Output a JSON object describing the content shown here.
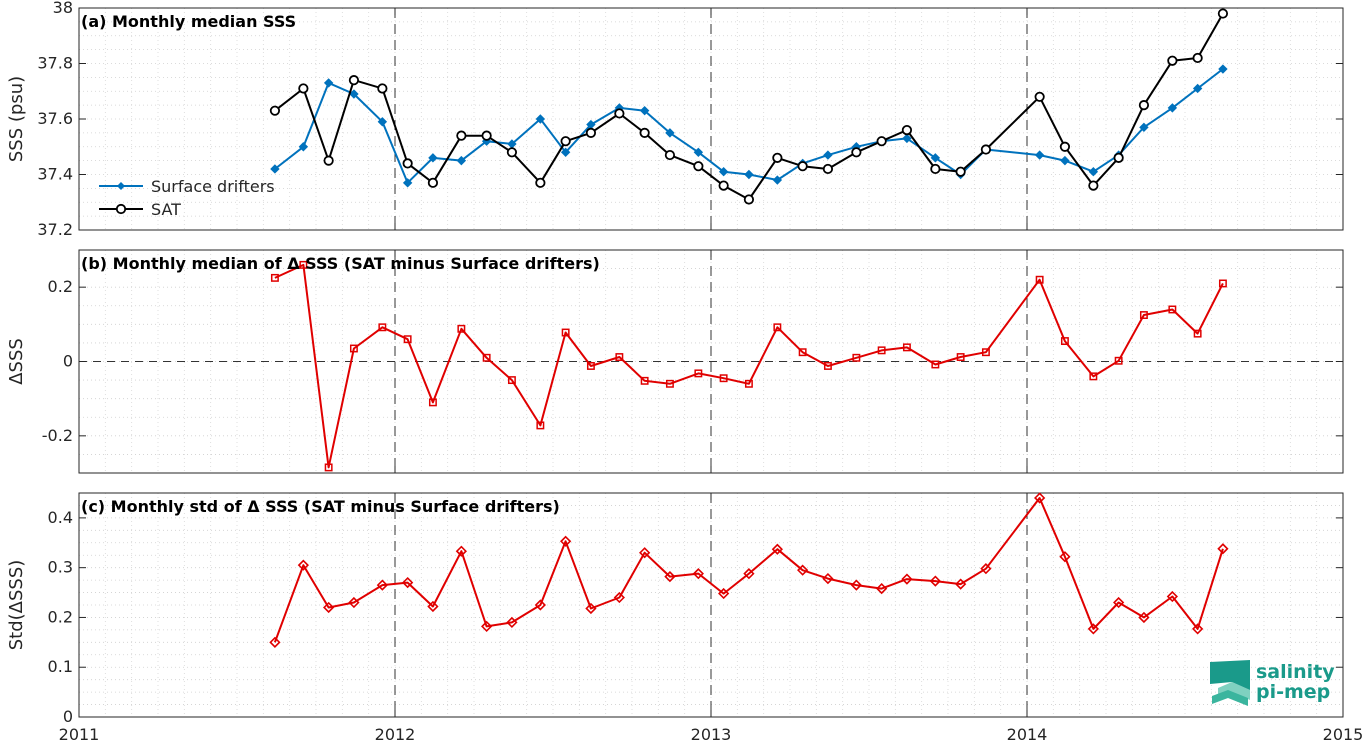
{
  "chart_data": [
    {
      "type": "line",
      "title": "(a) Monthly median SSS",
      "ylabel": "SSS (psu)",
      "ylim": [
        37.2,
        38
      ],
      "yticks": [
        "37.2",
        "37.4",
        "37.6",
        "37.8",
        "38"
      ],
      "legend_placement": "middle-left",
      "grid": true,
      "series": [
        {
          "name": "Surface drifters",
          "color": "#0072bd",
          "marker": "diamond-filled",
          "x": [
            2011.62,
            2011.71,
            2011.79,
            2011.87,
            2011.96,
            2012.04,
            2012.12,
            2012.21,
            2012.29,
            2012.37,
            2012.46,
            2012.54,
            2012.62,
            2012.71,
            2012.79,
            2012.87,
            2012.96,
            2013.04,
            2013.12,
            2013.21,
            2013.29,
            2013.37,
            2013.46,
            2013.54,
            2013.62,
            2013.71,
            2013.79,
            2013.87,
            2014.04,
            2014.12,
            2014.21,
            2014.29,
            2014.37,
            2014.46,
            2014.54,
            2014.62
          ],
          "y": [
            37.42,
            37.5,
            37.73,
            37.69,
            37.59,
            37.37,
            37.46,
            37.45,
            37.52,
            37.51,
            37.6,
            37.48,
            37.58,
            37.64,
            37.63,
            37.55,
            37.48,
            37.41,
            37.4,
            37.38,
            37.44,
            37.47,
            37.5,
            37.52,
            37.53,
            37.46,
            37.4,
            37.49,
            37.47,
            37.45,
            37.41,
            37.47,
            37.57,
            37.64,
            37.71,
            37.78
          ]
        },
        {
          "name": "SAT",
          "color": "#000000",
          "marker": "circle-open",
          "x": [
            2011.62,
            2011.71,
            2011.79,
            2011.87,
            2011.96,
            2012.04,
            2012.12,
            2012.21,
            2012.29,
            2012.37,
            2012.46,
            2012.54,
            2012.62,
            2012.71,
            2012.79,
            2012.87,
            2012.96,
            2013.04,
            2013.12,
            2013.21,
            2013.29,
            2013.37,
            2013.46,
            2013.54,
            2013.62,
            2013.71,
            2013.79,
            2013.87,
            2014.04,
            2014.12,
            2014.21,
            2014.29,
            2014.37,
            2014.46,
            2014.54,
            2014.62
          ],
          "y": [
            37.63,
            37.71,
            37.45,
            37.74,
            37.71,
            37.44,
            37.37,
            37.54,
            37.54,
            37.48,
            37.37,
            37.52,
            37.55,
            37.62,
            37.55,
            37.47,
            37.43,
            37.36,
            37.31,
            37.46,
            37.43,
            37.42,
            37.48,
            37.52,
            37.56,
            37.42,
            37.41,
            37.49,
            37.68,
            37.5,
            37.36,
            37.46,
            37.65,
            37.81,
            37.82,
            37.98
          ]
        }
      ]
    },
    {
      "type": "line",
      "title": "(b) Monthly median of Δ SSS (SAT minus Surface drifters)",
      "ylabel": "ΔSSS",
      "ylim": [
        -0.3,
        0.3
      ],
      "yticks": [
        "-0.2",
        "0",
        "0.2"
      ],
      "zero_line": true,
      "grid": true,
      "series": [
        {
          "color": "#e00000",
          "marker": "square-open",
          "x": [
            2011.62,
            2011.71,
            2011.79,
            2011.87,
            2011.96,
            2012.04,
            2012.12,
            2012.21,
            2012.29,
            2012.37,
            2012.46,
            2012.54,
            2012.62,
            2012.71,
            2012.79,
            2012.87,
            2012.96,
            2013.04,
            2013.12,
            2013.21,
            2013.29,
            2013.37,
            2013.46,
            2013.54,
            2013.62,
            2013.71,
            2013.79,
            2013.87,
            2014.04,
            2014.12,
            2014.21,
            2014.29,
            2014.37,
            2014.46,
            2014.54,
            2014.62
          ],
          "y": [
            0.225,
            0.26,
            -0.285,
            0.035,
            0.092,
            0.06,
            -0.11,
            0.088,
            0.01,
            -0.05,
            -0.172,
            0.078,
            -0.012,
            0.012,
            -0.052,
            -0.06,
            -0.032,
            -0.045,
            -0.06,
            0.092,
            0.025,
            -0.012,
            0.01,
            0.03,
            0.038,
            -0.008,
            0.012,
            0.025,
            0.22,
            0.055,
            -0.04,
            0.002,
            0.125,
            0.14,
            0.075,
            0.21
          ]
        }
      ]
    },
    {
      "type": "line",
      "title": "(c) Monthly std of Δ SSS (SAT minus Surface drifters)",
      "ylabel": "Std(ΔSSS)",
      "ylim": [
        0,
        0.45
      ],
      "yticks": [
        "0",
        "0.1",
        "0.2",
        "0.3",
        "0.4"
      ],
      "grid": true,
      "series": [
        {
          "color": "#e00000",
          "marker": "diamond-open",
          "x": [
            2011.62,
            2011.71,
            2011.79,
            2011.87,
            2011.96,
            2012.04,
            2012.12,
            2012.21,
            2012.29,
            2012.37,
            2012.46,
            2012.54,
            2012.62,
            2012.71,
            2012.79,
            2012.87,
            2012.96,
            2013.04,
            2013.12,
            2013.21,
            2013.29,
            2013.37,
            2013.46,
            2013.54,
            2013.62,
            2013.71,
            2013.79,
            2013.87,
            2014.04,
            2014.12,
            2014.21,
            2014.29,
            2014.37,
            2014.46,
            2014.54,
            2014.62
          ],
          "y": [
            0.15,
            0.305,
            0.22,
            0.23,
            0.265,
            0.27,
            0.222,
            0.333,
            0.182,
            0.19,
            0.225,
            0.353,
            0.218,
            0.24,
            0.33,
            0.282,
            0.288,
            0.248,
            0.288,
            0.337,
            0.295,
            0.278,
            0.265,
            0.258,
            0.277,
            0.273,
            0.267,
            0.298,
            0.44,
            0.322,
            0.177,
            0.23,
            0.2,
            0.242,
            0.177,
            0.338
          ]
        }
      ]
    }
  ],
  "xaxis": {
    "xlim": [
      2011,
      2015
    ],
    "ticks": [
      "2011",
      "2012",
      "2013",
      "2014",
      "2015"
    ],
    "year_lines": [
      2012,
      2013,
      2014
    ]
  },
  "logo": {
    "line1": "salinity",
    "line2": "pi-mep",
    "color": "#1a9a8a"
  }
}
